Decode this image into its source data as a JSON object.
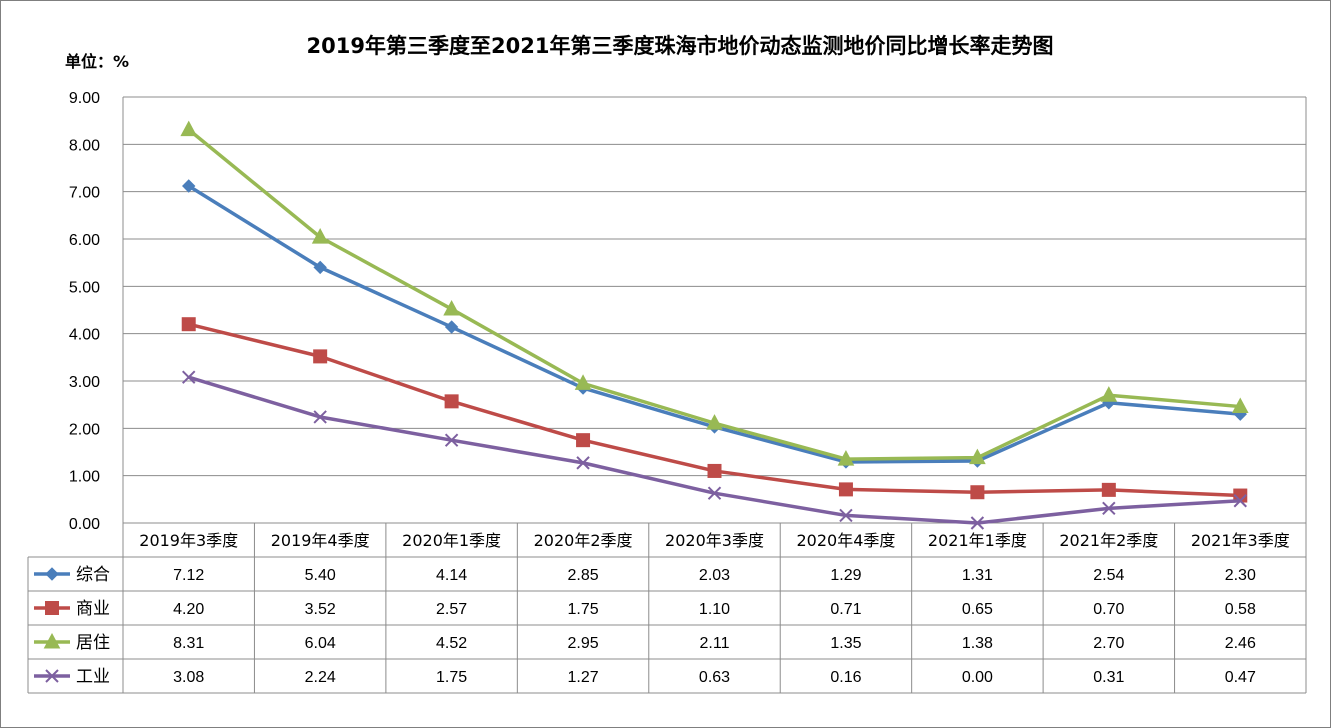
{
  "chart_data": {
    "type": "line",
    "title": "2019年第三季度至2021年第三季度珠海市地价动态监测地价同比增长率走势图",
    "unit_label": "单位：%",
    "xlabel": "",
    "ylabel": "",
    "ylim": [
      0,
      9
    ],
    "y_ticks": [
      "0.00",
      "1.00",
      "2.00",
      "3.00",
      "4.00",
      "5.00",
      "6.00",
      "7.00",
      "8.00",
      "9.00"
    ],
    "y_tick_values": [
      0,
      1,
      2,
      3,
      4,
      5,
      6,
      7,
      8,
      9
    ],
    "grid": true,
    "legend": "data-table-left",
    "categories": [
      "2019年3季度",
      "2019年4季度",
      "2020年1季度",
      "2020年2季度",
      "2020年3季度",
      "2020年4季度",
      "2021年1季度",
      "2021年2季度",
      "2021年3季度"
    ],
    "series": [
      {
        "name": "综合",
        "color": "#4a7ebb",
        "marker": "diamond",
        "values": [
          7.12,
          5.4,
          4.14,
          2.85,
          2.03,
          1.29,
          1.31,
          2.54,
          2.3
        ],
        "labels": [
          "7.12",
          "5.40",
          "4.14",
          "2.85",
          "2.03",
          "1.29",
          "1.31",
          "2.54",
          "2.30"
        ]
      },
      {
        "name": "商业",
        "color": "#be4b48",
        "marker": "square",
        "values": [
          4.2,
          3.52,
          2.57,
          1.75,
          1.1,
          0.71,
          0.65,
          0.7,
          0.58
        ],
        "labels": [
          "4.20",
          "3.52",
          "2.57",
          "1.75",
          "1.10",
          "0.71",
          "0.65",
          "0.70",
          "0.58"
        ]
      },
      {
        "name": "居住",
        "color": "#98b954",
        "marker": "triangle",
        "values": [
          8.31,
          6.04,
          4.52,
          2.95,
          2.11,
          1.35,
          1.38,
          2.7,
          2.46
        ],
        "labels": [
          "8.31",
          "6.04",
          "4.52",
          "2.95",
          "2.11",
          "1.35",
          "1.38",
          "2.70",
          "2.46"
        ]
      },
      {
        "name": "工业",
        "color": "#7d60a0",
        "marker": "x",
        "values": [
          3.08,
          2.24,
          1.75,
          1.27,
          0.63,
          0.16,
          0.0,
          0.31,
          0.47
        ],
        "labels": [
          "3.08",
          "2.24",
          "1.75",
          "1.27",
          "0.63",
          "0.16",
          "0.00",
          "0.31",
          "0.47"
        ]
      }
    ]
  }
}
